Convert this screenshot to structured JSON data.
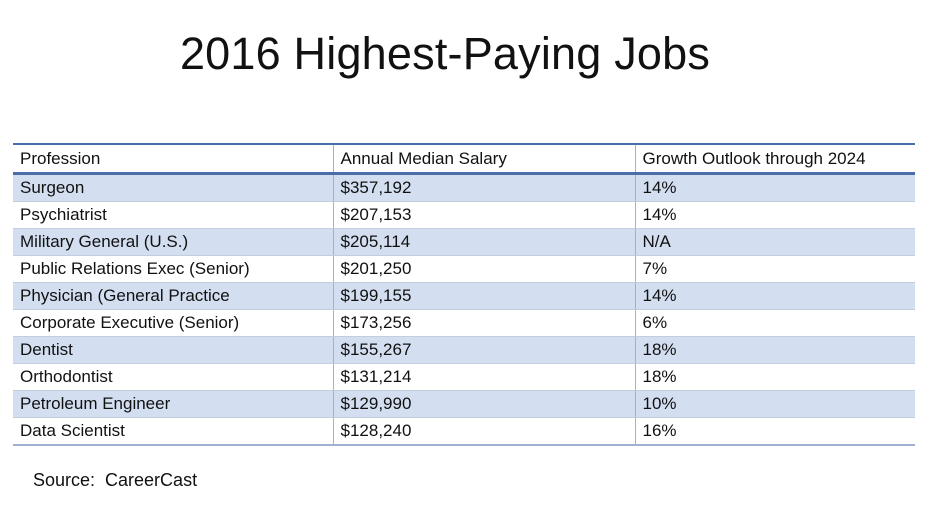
{
  "title": "2016 Highest-Paying Jobs",
  "source": "Source:  CareerCast",
  "chart_data": {
    "type": "table",
    "title": "2016 Highest-Paying Jobs",
    "columns": [
      "Profession",
      "Annual Median Salary",
      "Growth Outlook through 2024"
    ],
    "rows": [
      [
        "Surgeon",
        "$357,192",
        "14%"
      ],
      [
        "Psychiatrist",
        "$207,153",
        "14%"
      ],
      [
        "Military General (U.S.)",
        "$205,114",
        "N/A"
      ],
      [
        "Public Relations Exec (Senior)",
        "$201,250",
        "7%"
      ],
      [
        "Physician (General Practice",
        "$199,155",
        "14%"
      ],
      [
        "Corporate Executive (Senior)",
        "$173,256",
        "6%"
      ],
      [
        "Dentist",
        "$155,267",
        "18%"
      ],
      [
        "Orthodontist",
        "$131,214",
        "18%"
      ],
      [
        "Petroleum Engineer",
        "$129,990",
        "10%"
      ],
      [
        "Data Scientist",
        "$128,240",
        "16%"
      ]
    ],
    "source": "CareerCast"
  },
  "colors": {
    "header_rule": "#4a6fa8",
    "band_fill": "#d3dff0",
    "grid_line": "#9fb1cf"
  }
}
